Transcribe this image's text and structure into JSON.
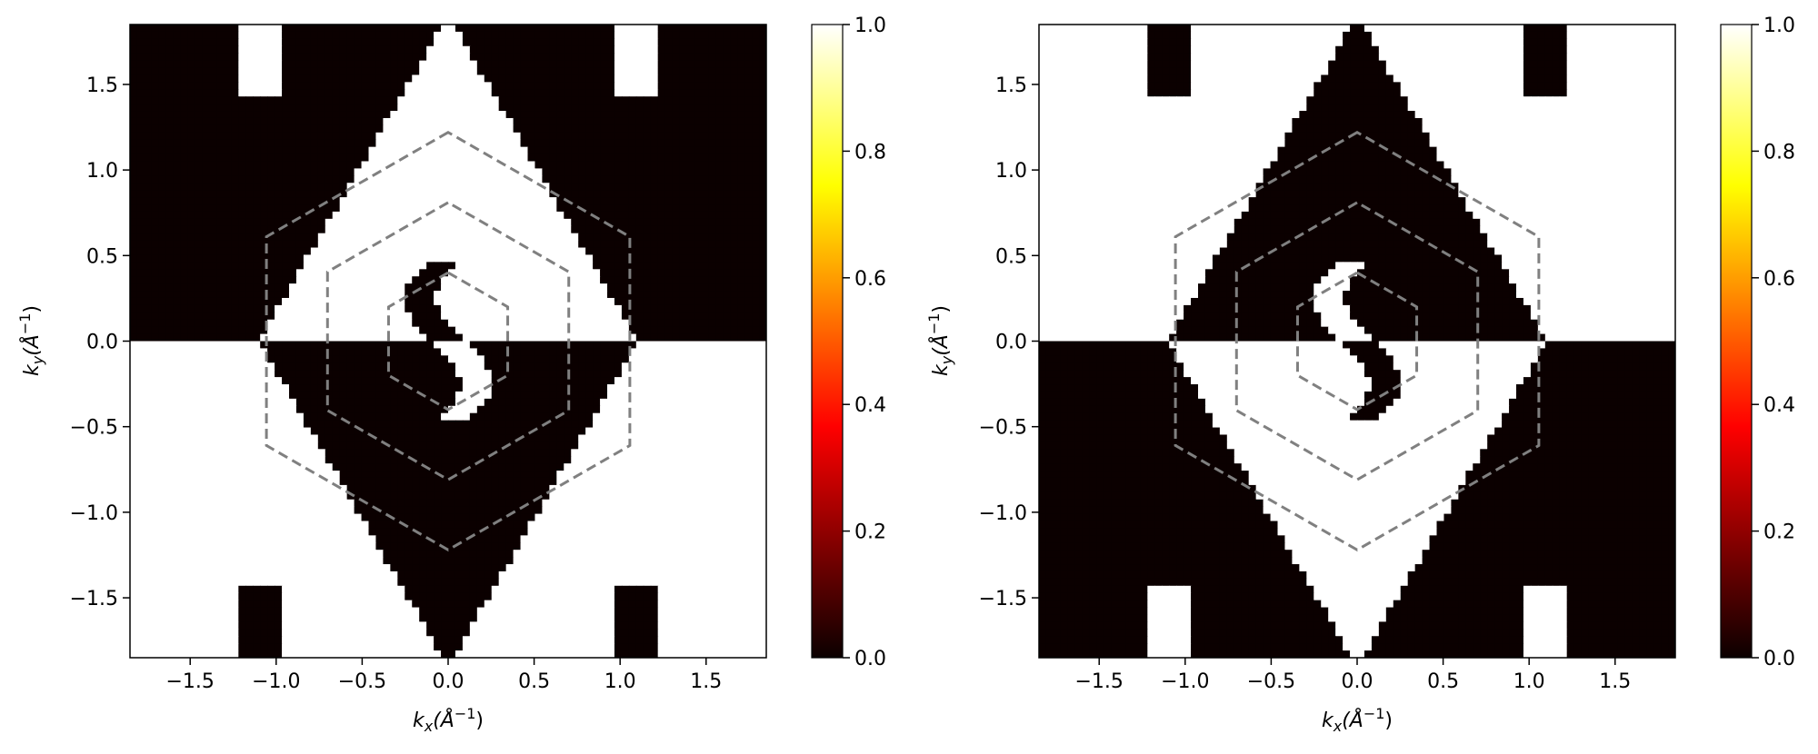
{
  "chart_data": [
    {
      "type": "heatmap",
      "title": "",
      "xlabel": {
        "base": "k",
        "sub": "x",
        "unit": "(Å",
        "sup": "−1",
        "close": ")"
      },
      "ylabel": {
        "base": "k",
        "sub": "y",
        "unit": "(Å",
        "sup": "−1",
        "close": ")"
      },
      "xlim": [
        -1.85,
        1.85
      ],
      "ylim": [
        -1.85,
        1.85
      ],
      "xticks": [
        -1.5,
        -1.0,
        -0.5,
        0.0,
        0.5,
        1.0,
        1.5
      ],
      "yticks": [
        -1.5,
        -1.0,
        -0.5,
        0.0,
        0.5,
        1.0,
        1.5
      ],
      "xtick_labels": [
        "−1.5",
        "−1.0",
        "−0.5",
        "0.0",
        "0.5",
        "1.0",
        "1.5"
      ],
      "ytick_labels": [
        "−1.5",
        "−1.0",
        "−0.5",
        "0.0",
        "0.5",
        "1.0",
        "1.5"
      ],
      "colormap": "hot",
      "colorbar": {
        "range": [
          0.0,
          1.0
        ],
        "ticks": [
          "0.0",
          "0.2",
          "0.4",
          "0.6",
          "0.8",
          "1.0"
        ]
      },
      "hexagon_radii": [
        0.4,
        0.81,
        1.22
      ],
      "hexagon_color": "#808080",
      "upper_half_center_value": 1,
      "grid": false
    },
    {
      "type": "heatmap",
      "title": "",
      "xlabel": {
        "base": "k",
        "sub": "x",
        "unit": "(Å",
        "sup": "−1",
        "close": ")"
      },
      "ylabel": {
        "base": "k",
        "sub": "y",
        "unit": "(Å",
        "sup": "−1",
        "close": ")"
      },
      "xlim": [
        -1.85,
        1.85
      ],
      "ylim": [
        -1.85,
        1.85
      ],
      "xticks": [
        -1.5,
        -1.0,
        -0.5,
        0.0,
        0.5,
        1.0,
        1.5
      ],
      "yticks": [
        -1.5,
        -1.0,
        -0.5,
        0.0,
        0.5,
        1.0,
        1.5
      ],
      "xtick_labels": [
        "−1.5",
        "−1.0",
        "−0.5",
        "0.0",
        "0.5",
        "1.0",
        "1.5"
      ],
      "ytick_labels": [
        "−1.5",
        "−1.0",
        "−0.5",
        "0.0",
        "0.5",
        "1.0",
        "1.5"
      ],
      "colormap": "hot",
      "colorbar": {
        "range": [
          0.0,
          1.0
        ],
        "ticks": [
          "0.0",
          "0.2",
          "0.4",
          "0.6",
          "0.8",
          "1.0"
        ]
      },
      "hexagon_radii": [
        0.4,
        0.81,
        1.22
      ],
      "hexagon_color": "#808080",
      "upper_half_center_value": 0,
      "grid": false
    }
  ]
}
